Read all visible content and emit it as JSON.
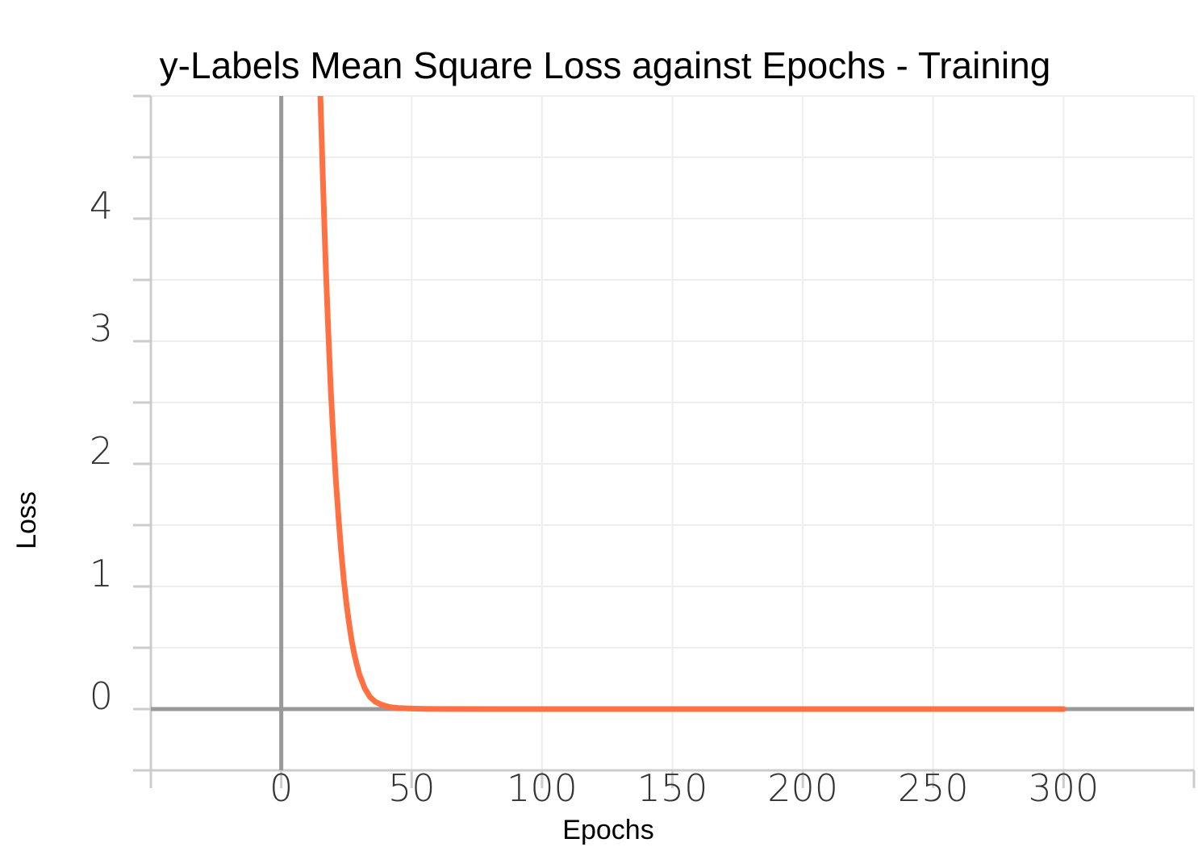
{
  "chart_data": {
    "type": "line",
    "title": "y-Labels Mean Square Loss against Epochs - Training",
    "xlabel": "Epochs",
    "ylabel": "Loss",
    "xlim": [
      -50,
      350
    ],
    "ylim": [
      -0.5,
      5
    ],
    "x_ticks": [
      0,
      50,
      100,
      150,
      200,
      250,
      300
    ],
    "y_ticks": [
      0,
      1,
      2,
      3,
      4
    ],
    "grid": true,
    "colors": {
      "line": "#ff7043",
      "zero_axis": "#999999",
      "grid": "#eeeeee"
    },
    "series": [
      {
        "x": [
          15,
          16,
          17,
          18,
          19,
          20,
          21,
          22,
          23,
          24,
          25,
          26,
          27,
          28,
          29,
          30,
          32,
          34,
          36,
          38,
          40,
          42,
          45,
          50,
          55,
          60,
          80,
          100,
          150,
          200,
          250,
          300
        ],
        "values": [
          5.0,
          4.3,
          3.65,
          3.1,
          2.6,
          2.2,
          1.85,
          1.55,
          1.28,
          1.05,
          0.86,
          0.7,
          0.56,
          0.45,
          0.36,
          0.28,
          0.17,
          0.1,
          0.06,
          0.04,
          0.025,
          0.015,
          0.008,
          0.004,
          0.002,
          0.001,
          0.0,
          0.0,
          0.0,
          0.0,
          0.0,
          0.0
        ]
      }
    ]
  }
}
